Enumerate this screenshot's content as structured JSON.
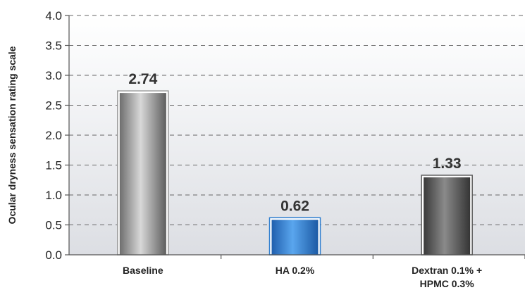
{
  "chart_data": {
    "type": "bar",
    "categories": [
      "Baseline",
      "HA 0.2%",
      "Dextran 0.1% +\nHPMC 0.3%"
    ],
    "values": [
      2.74,
      0.62,
      1.33
    ],
    "value_labels": [
      "2.74",
      "0.62",
      "1.33"
    ],
    "bar_colors": [
      "#9a9a9a",
      "#2f7fd0",
      "#5a5a5a"
    ],
    "title": "",
    "xlabel": "",
    "ylabel": "Ocular dryness sensation rating scale",
    "ylim": [
      0,
      4.0
    ],
    "yticks": [
      "0.0",
      "0.5",
      "1.0",
      "1.5",
      "2.0",
      "2.5",
      "3.0",
      "3.5",
      "4.0"
    ],
    "grid": true,
    "legend": "none"
  }
}
